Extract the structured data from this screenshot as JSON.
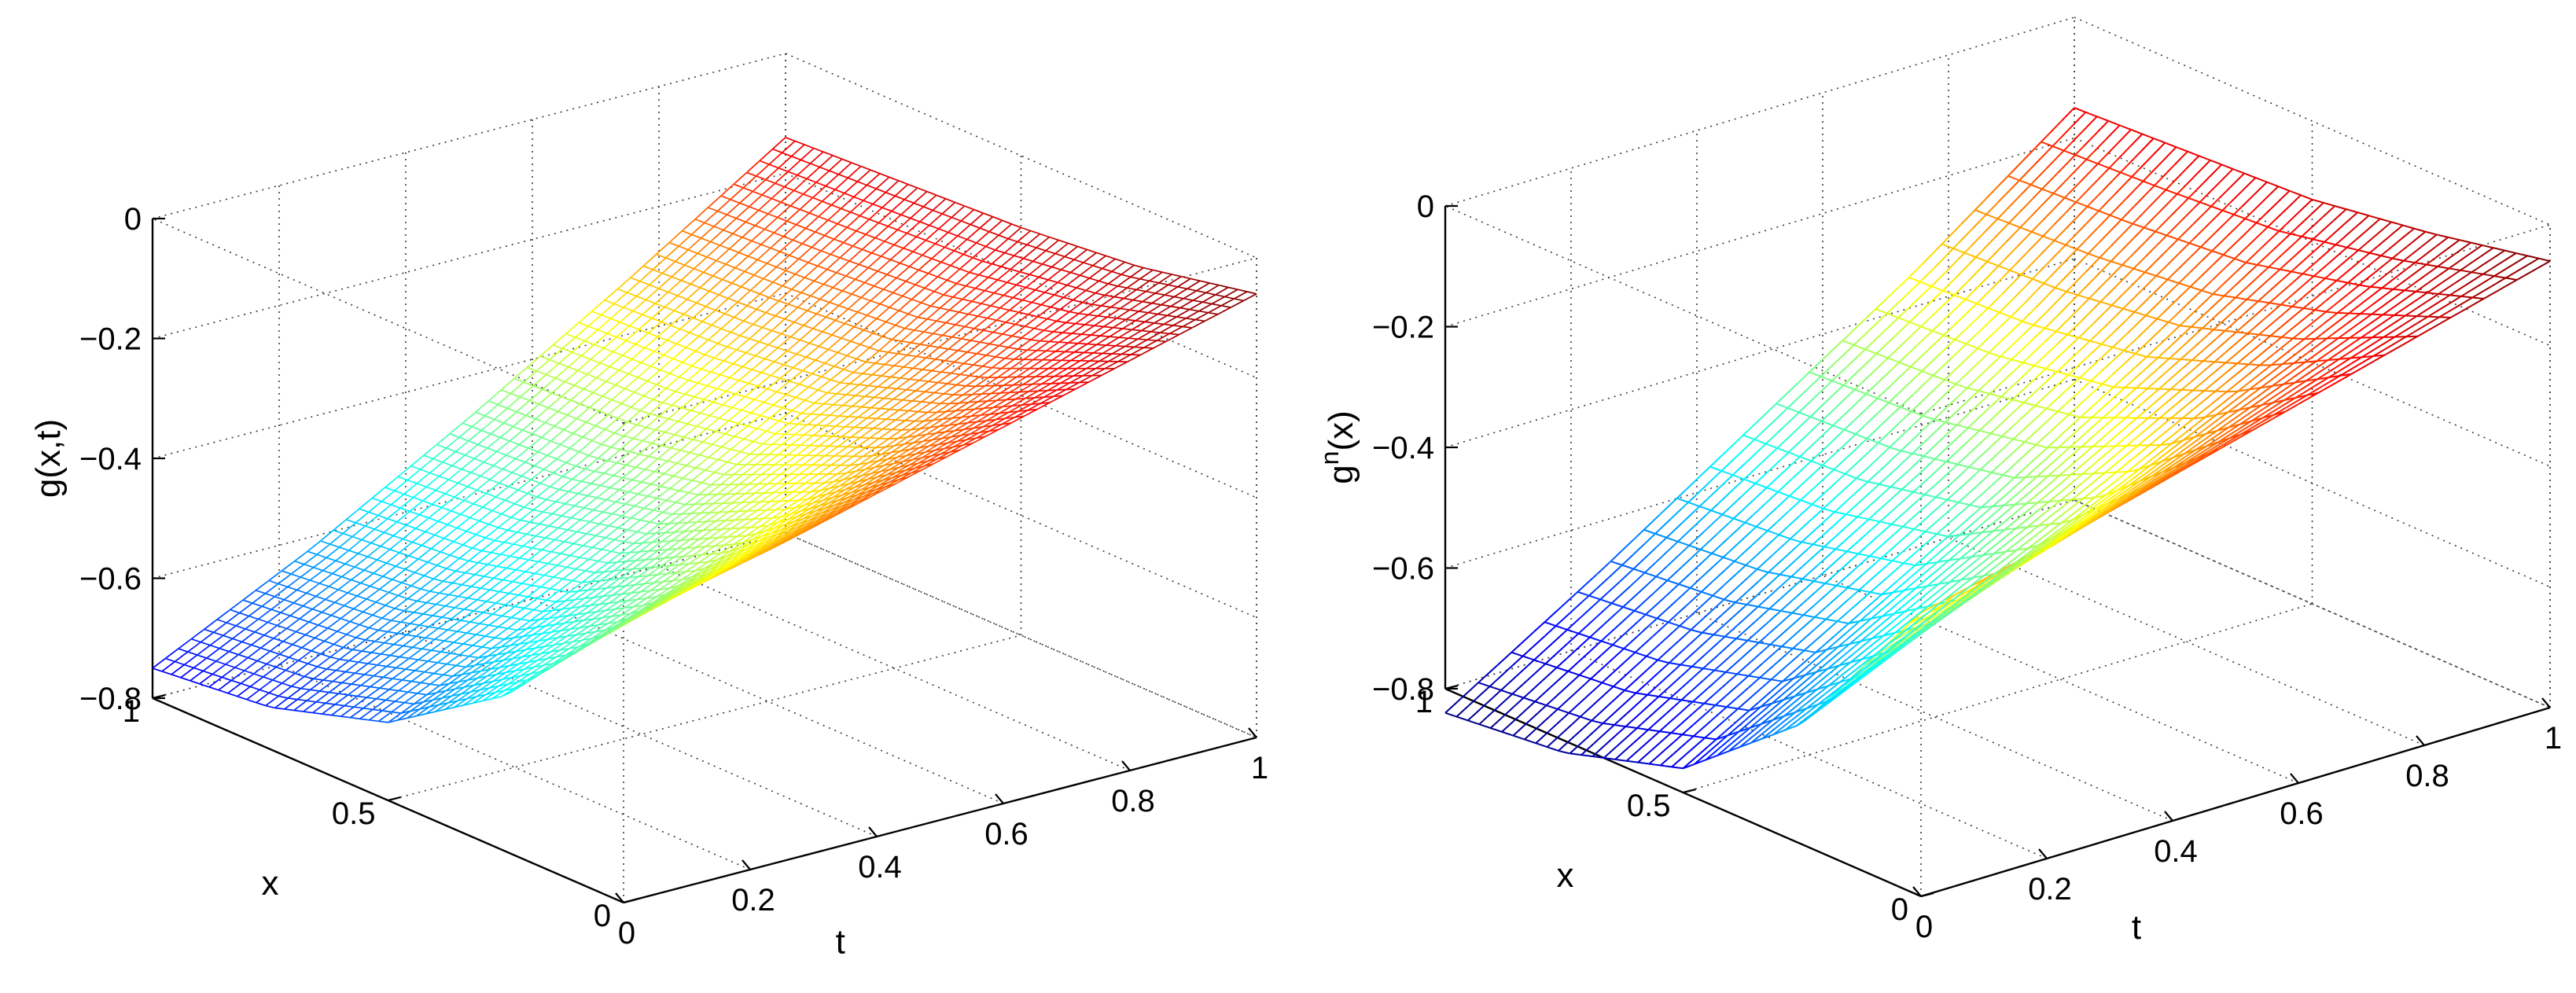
{
  "chart_data": [
    {
      "type": "surface",
      "zlabel": "g(x,t)",
      "xlabel": "x",
      "tlabel": "t",
      "xlim": [
        0,
        1
      ],
      "tlim": [
        0,
        1
      ],
      "zlim": [
        -0.8,
        0
      ],
      "x_ticks": [
        "0",
        "0.5",
        "1"
      ],
      "t_ticks": [
        "0",
        "0.2",
        "0.4",
        "0.6",
        "0.8",
        "1"
      ],
      "z_ticks": [
        "0",
        "−0.2",
        "−0.4",
        "−0.6",
        "−0.8"
      ],
      "grid": true,
      "colormap": "jet",
      "grid_resolution": 50,
      "surface_samples": {
        "t": [
          0,
          0.25,
          0.5,
          0.75,
          1
        ],
        "x": [
          0,
          0.25,
          0.5,
          0.75,
          1
        ],
        "g": [
          [
            -0.33,
            -0.54,
            -0.67,
            -0.73,
            -0.75
          ],
          [
            -0.27,
            -0.44,
            -0.55,
            -0.6,
            -0.62
          ],
          [
            -0.2,
            -0.33,
            -0.42,
            -0.46,
            -0.47
          ],
          [
            -0.13,
            -0.22,
            -0.28,
            -0.3,
            -0.31
          ],
          [
            -0.06,
            -0.1,
            -0.12,
            -0.13,
            -0.14
          ]
        ]
      }
    },
    {
      "type": "surface",
      "zlabel": "g",
      "zlabel_sup": "n",
      "zlabel_tail": "(x)",
      "xlabel": "x",
      "tlabel": "t",
      "xlim": [
        0,
        1
      ],
      "tlim": [
        0,
        1
      ],
      "zlim": [
        -0.8,
        0
      ],
      "x_ticks": [
        "0",
        "0.5",
        "1"
      ],
      "t_ticks": [
        "0",
        "0.2",
        "0.4",
        "0.6",
        "0.8",
        "1"
      ],
      "z_ticks": [
        "0",
        "−0.2",
        "−0.4",
        "−0.6",
        "−0.8"
      ],
      "grid": true,
      "colormap": "jet",
      "time_steps": 20,
      "grid_resolution": 50,
      "surface_samples": {
        "t": [
          0,
          0.25,
          0.5,
          0.75,
          1
        ],
        "x": [
          0,
          0.25,
          0.5,
          0.75,
          1
        ],
        "g": [
          [
            -0.33,
            -0.6,
            -0.76,
            -0.82,
            -0.84
          ],
          [
            -0.27,
            -0.48,
            -0.61,
            -0.66,
            -0.68
          ],
          [
            -0.2,
            -0.36,
            -0.46,
            -0.5,
            -0.51
          ],
          [
            -0.13,
            -0.23,
            -0.3,
            -0.33,
            -0.34
          ],
          [
            -0.06,
            -0.1,
            -0.13,
            -0.14,
            -0.15
          ]
        ]
      }
    }
  ]
}
